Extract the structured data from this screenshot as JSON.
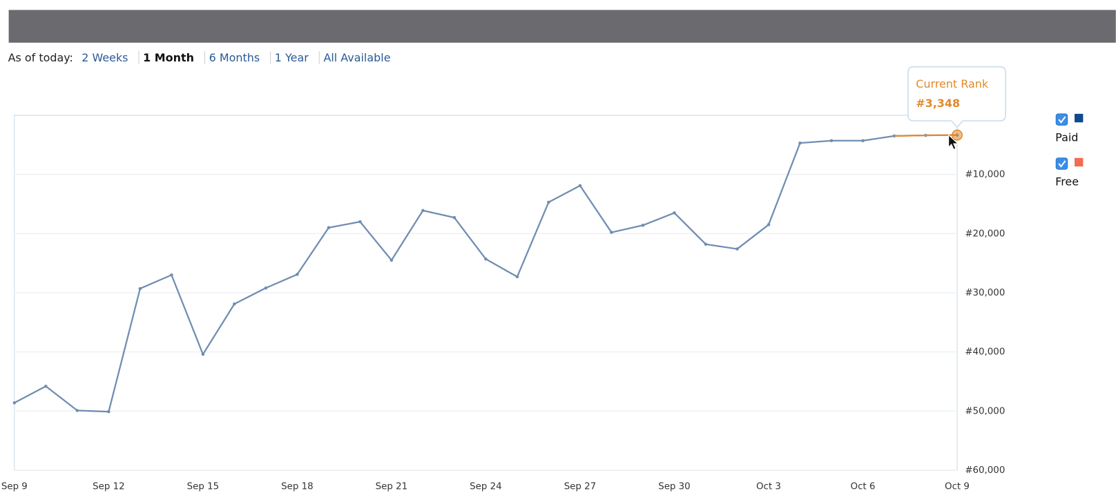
{
  "range_selector": {
    "label": "As of today:",
    "options": [
      "2 Weeks",
      "1 Month",
      "6 Months",
      "1 Year",
      "All Available"
    ],
    "active": 1
  },
  "chart_data": {
    "type": "line",
    "categories": [
      "Sep 9",
      null,
      null,
      "Sep 12",
      null,
      null,
      "Sep 15",
      null,
      null,
      "Sep 18",
      null,
      null,
      "Sep 21",
      null,
      null,
      "Sep 24",
      null,
      null,
      "Sep 27",
      null,
      null,
      "Sep 30",
      null,
      null,
      "Oct 3",
      null,
      null,
      "Oct 6",
      null,
      null,
      "Oct 9"
    ],
    "series": [
      {
        "name": "Paid",
        "color": "#6f8db2",
        "legend_color": "#0d4a8f",
        "checked": true,
        "values": [
          48600,
          45800,
          49900,
          50100,
          29300,
          27000,
          40400,
          31900,
          29200,
          26900,
          19000,
          18000,
          24500,
          16100,
          17300,
          24300,
          27300,
          14700,
          11900,
          19800,
          18600,
          16500,
          21800,
          22600,
          18500,
          4700,
          4300,
          4300,
          3500,
          3400,
          3348
        ]
      },
      {
        "name": "Free",
        "color": "#f26b50",
        "legend_color": "#f26b50",
        "checked": true,
        "values": [
          null,
          null,
          null,
          null,
          null,
          null,
          null,
          null,
          null,
          null,
          null,
          null,
          null,
          null,
          null,
          null,
          null,
          null,
          null,
          null,
          null,
          null,
          null,
          null,
          null,
          null,
          null,
          null,
          null,
          null,
          null
        ]
      }
    ],
    "ylim": [
      60000,
      0
    ],
    "yticks": [
      {
        "value": 10000,
        "label": "#10,000"
      },
      {
        "value": 20000,
        "label": "#20,000"
      },
      {
        "value": 30000,
        "label": "#30,000"
      },
      {
        "value": 40000,
        "label": "#40,000"
      },
      {
        "value": 50000,
        "label": "#50,000"
      },
      {
        "value": 60000,
        "label": "#60,000"
      }
    ],
    "grid": true,
    "highlight_color": "#e08a2c",
    "tooltip": {
      "title": "Current Rank",
      "label": "#3,348"
    }
  }
}
